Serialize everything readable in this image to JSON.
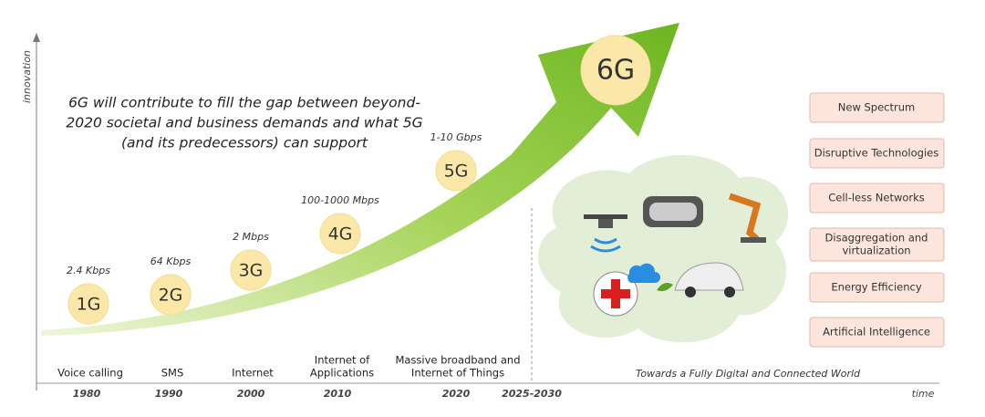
{
  "axis": {
    "y_label": "innovation",
    "x_label": "time"
  },
  "headline": [
    "6G will contribute to fill the gap between beyond-",
    "2020 societal and business demands and what 5G",
    "(and its predecessors) can support"
  ],
  "generations": [
    {
      "label": "1G",
      "speed": "2.4 Kbps",
      "application": [
        "Voice calling"
      ],
      "year": "1980"
    },
    {
      "label": "2G",
      "speed": "64 Kbps",
      "application": [
        "SMS"
      ],
      "year": "1990"
    },
    {
      "label": "3G",
      "speed": "2 Mbps",
      "application": [
        "Internet"
      ],
      "year": "2000"
    },
    {
      "label": "4G",
      "speed": "100-1000 Mbps",
      "application": [
        "Internet of",
        "Applications"
      ],
      "year": "2010"
    },
    {
      "label": "5G",
      "speed": "1-10 Gbps",
      "application": [
        "Massive broadband and",
        "Internet of Things"
      ],
      "year": "2020"
    },
    {
      "label": "6G",
      "year": "2025-2030"
    }
  ],
  "future": {
    "caption": "Towards a Fully Digital and Connected World",
    "features": [
      "New Spectrum",
      "Disruptive Technologies",
      "Cell-less Networks",
      [
        "Disaggregation and",
        "virtualization"
      ],
      "Energy Efficiency",
      "Artificial Intelligence"
    ]
  }
}
